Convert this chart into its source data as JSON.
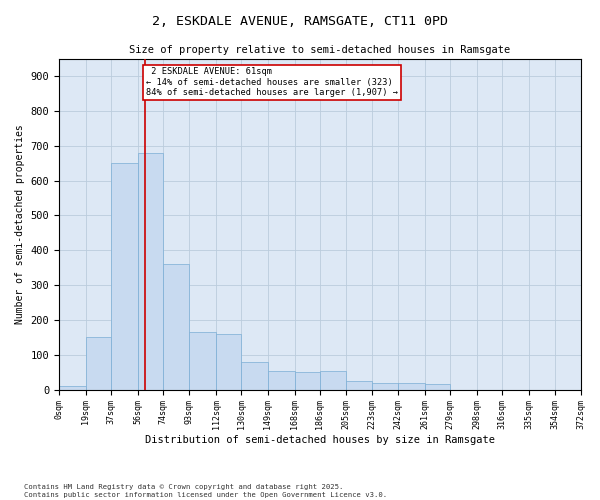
{
  "title1": "2, ESKDALE AVENUE, RAMSGATE, CT11 0PD",
  "title2": "Size of property relative to semi-detached houses in Ramsgate",
  "xlabel": "Distribution of semi-detached houses by size in Ramsgate",
  "ylabel": "Number of semi-detached properties",
  "bar_color": "#c8daf0",
  "bar_edge_color": "#7aadd4",
  "bins": [
    0,
    19,
    37,
    56,
    74,
    93,
    112,
    130,
    149,
    168,
    186,
    205,
    223,
    242,
    261,
    279,
    298,
    316,
    335,
    354,
    372
  ],
  "bin_labels": [
    "0sqm",
    "19sqm",
    "37sqm",
    "56sqm",
    "74sqm",
    "93sqm",
    "112sqm",
    "130sqm",
    "149sqm",
    "168sqm",
    "186sqm",
    "205sqm",
    "223sqm",
    "242sqm",
    "261sqm",
    "279sqm",
    "298sqm",
    "316sqm",
    "335sqm",
    "354sqm",
    "372sqm"
  ],
  "values": [
    10,
    150,
    650,
    680,
    360,
    165,
    160,
    80,
    55,
    50,
    55,
    25,
    20,
    20,
    15,
    0,
    0,
    0,
    0,
    0
  ],
  "property_size": 61,
  "property_label": "2 ESKDALE AVENUE: 61sqm",
  "pct_smaller": 14,
  "pct_larger": 84,
  "n_smaller": 323,
  "n_larger": 1907,
  "vline_color": "#cc0000",
  "annotation_box_color": "#cc0000",
  "ylim": [
    0,
    950
  ],
  "yticks": [
    0,
    100,
    200,
    300,
    400,
    500,
    600,
    700,
    800,
    900
  ],
  "grid_color": "#bbccdd",
  "bg_color": "#dde8f5",
  "footnote1": "Contains HM Land Registry data © Crown copyright and database right 2025.",
  "footnote2": "Contains public sector information licensed under the Open Government Licence v3.0."
}
